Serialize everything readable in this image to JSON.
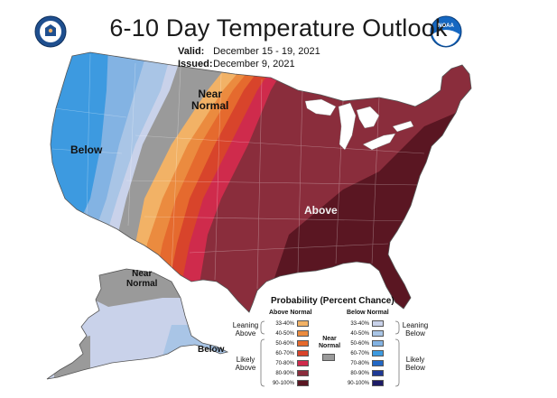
{
  "header": {
    "title": "6-10 Day Temperature Outlook",
    "valid_label": "Valid:",
    "valid_dates": "December 15 - 19, 2021",
    "issued_label": "Issued:",
    "issued_date": "December 9, 2021",
    "left_logo_icon": "doc-seal-icon",
    "right_logo_icon": "noaa-logo-icon",
    "right_logo_text": "NOAA"
  },
  "map_labels": {
    "below_west": "Below",
    "near_normal_plains": "Near\nNormal",
    "above_east": "Above",
    "near_normal_alaska": "Near\nNormal",
    "below_alaska": "Below"
  },
  "legend": {
    "title": "Probability (Percent Chance)",
    "above_header": "Above Normal",
    "below_header": "Below Normal",
    "leaning_above": "Leaning\nAbove",
    "likely_above": "Likely\nAbove",
    "leaning_below": "Leaning\nBelow",
    "likely_below": "Likely\nBelow",
    "near_normal": "Near\nNormal",
    "above_categories": [
      {
        "label": "33-40%",
        "color": "#f2b266"
      },
      {
        "label": "40-50%",
        "color": "#eb8b3f"
      },
      {
        "label": "50-60%",
        "color": "#e56a2e"
      },
      {
        "label": "60-70%",
        "color": "#d8442b"
      },
      {
        "label": "70-80%",
        "color": "#cf2b4c"
      },
      {
        "label": "80-90%",
        "color": "#8a2d3c"
      },
      {
        "label": "90-100%",
        "color": "#5a1622"
      }
    ],
    "below_categories": [
      {
        "label": "33-40%",
        "color": "#c9d2ea"
      },
      {
        "label": "40-50%",
        "color": "#a9c5e6"
      },
      {
        "label": "50-60%",
        "color": "#83b3e3"
      },
      {
        "label": "60-70%",
        "color": "#3d9ae0"
      },
      {
        "label": "70-80%",
        "color": "#2267c4"
      },
      {
        "label": "80-90%",
        "color": "#1f3a95"
      },
      {
        "label": "90-100%",
        "color": "#1d1c66"
      }
    ],
    "near_normal_color": "#9a9a9a"
  }
}
